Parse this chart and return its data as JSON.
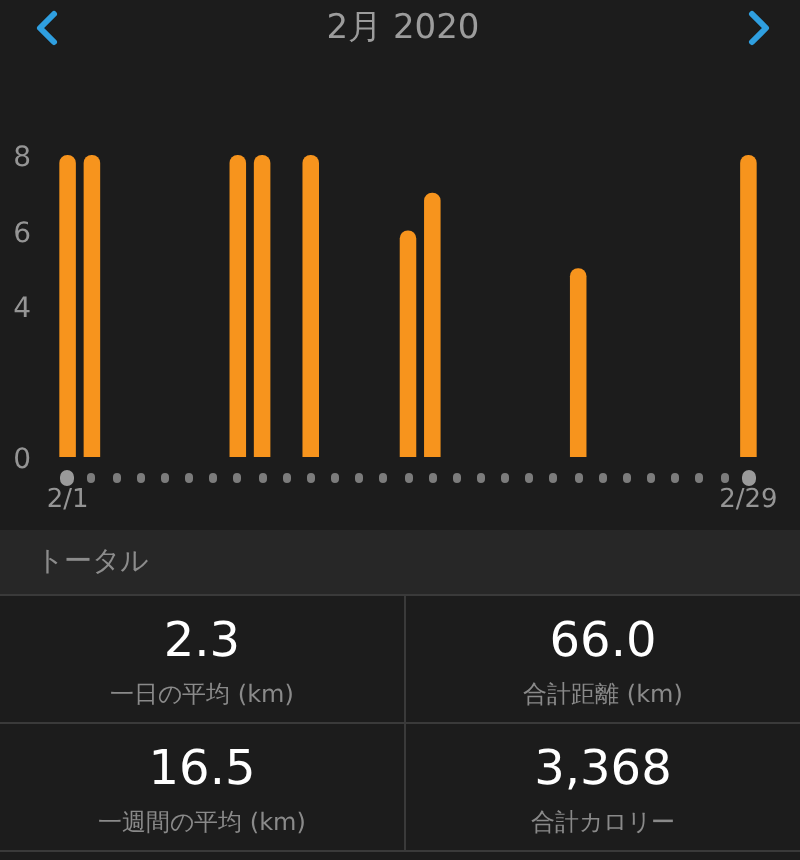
{
  "chart_data": [
    {
      "type": "bar",
      "title": "2月 2020",
      "categories": [
        "2/1",
        null,
        null,
        null,
        null,
        null,
        null,
        null,
        null,
        null,
        null,
        null,
        null,
        null,
        null,
        null,
        null,
        null,
        null,
        null,
        null,
        null,
        null,
        null,
        null,
        null,
        null,
        null,
        "2/29"
      ],
      "values": [
        8,
        8,
        0,
        0,
        0,
        0,
        0,
        8,
        8,
        0,
        8,
        0,
        0,
        0,
        6,
        7,
        0,
        0,
        0,
        0,
        0,
        5,
        0,
        0,
        0,
        0,
        0,
        0,
        8
      ],
      "color": "#f7941d",
      "ylim": [
        0,
        8
      ],
      "yticks": [
        0,
        4,
        6,
        8
      ],
      "grid": false
    },
    {
      "type": "other",
      "title": "トータル",
      "annotations": [
        "2.3",
        "一日の平均 (km)",
        "66.0",
        "合計距離 (km)",
        "16.5",
        "一週間の平均 (km)",
        "3,368",
        "合計カロリー"
      ]
    }
  ]
}
